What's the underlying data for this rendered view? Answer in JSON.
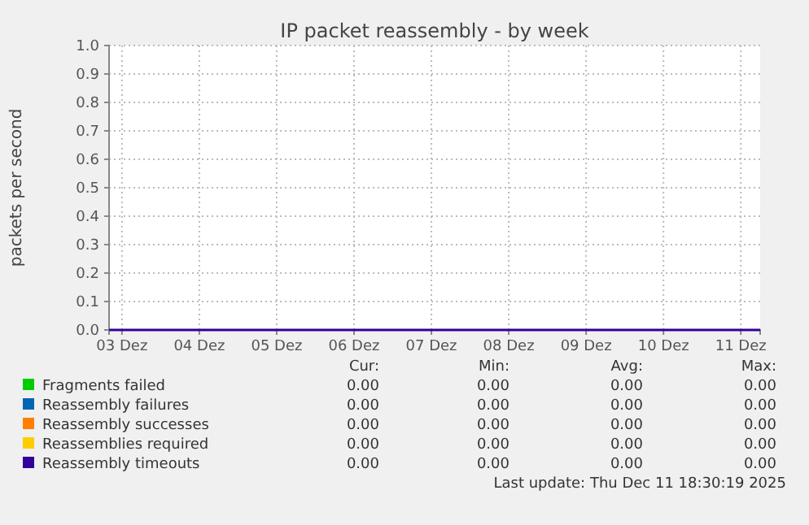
{
  "chart_data": {
    "type": "line",
    "title": "IP packet reassembly - by week",
    "ylabel": "packets per second",
    "x": [
      "2025-12-02T20:00",
      "2025-12-11T06:00"
    ],
    "xlim": [
      "2025-12-02T20:00",
      "2025-12-11T06:00"
    ],
    "xticks": [
      {
        "value": "2025-12-03",
        "label": "03 Dez"
      },
      {
        "value": "2025-12-04",
        "label": "04 Dez"
      },
      {
        "value": "2025-12-05",
        "label": "05 Dez"
      },
      {
        "value": "2025-12-06",
        "label": "06 Dez"
      },
      {
        "value": "2025-12-07",
        "label": "07 Dez"
      },
      {
        "value": "2025-12-08",
        "label": "08 Dez"
      },
      {
        "value": "2025-12-09",
        "label": "09 Dez"
      },
      {
        "value": "2025-12-10",
        "label": "10 Dez"
      },
      {
        "value": "2025-12-11",
        "label": "11 Dez"
      }
    ],
    "ylim": [
      0,
      1
    ],
    "yticks": [
      {
        "value": 0,
        "label": "0.0"
      },
      {
        "value": 0.1,
        "label": "0.1"
      },
      {
        "value": 0.2,
        "label": "0.2"
      },
      {
        "value": 0.3,
        "label": "0.3"
      },
      {
        "value": 0.4,
        "label": "0.4"
      },
      {
        "value": 0.5,
        "label": "0.5"
      },
      {
        "value": 0.6,
        "label": "0.6"
      },
      {
        "value": 0.7,
        "label": "0.7"
      },
      {
        "value": 0.8,
        "label": "0.8"
      },
      {
        "value": 0.9,
        "label": "0.9"
      },
      {
        "value": 1,
        "label": "1.0"
      }
    ],
    "grid": true,
    "legend": "bottom",
    "series": [
      {
        "name": "Fragments failed",
        "color": "#00cc00",
        "values": [
          null,
          null
        ]
      },
      {
        "name": "Reassembly failures",
        "color": "#0066b3",
        "values": [
          null,
          null
        ]
      },
      {
        "name": "Reassembly successes",
        "color": "#ff8000",
        "values": [
          null,
          null
        ]
      },
      {
        "name": "Reassemblies required",
        "color": "#ffcc00",
        "values": [
          null,
          null
        ]
      },
      {
        "name": "Reassembly timeouts",
        "color": "#330099",
        "values": [
          0,
          0
        ]
      }
    ],
    "annotations": [
      "Cur:",
      "Min:",
      "Avg:",
      "Max:",
      "0.00",
      "0.00",
      "0.00",
      "0.00",
      "0.00",
      "0.00",
      "0.00",
      "0.00",
      "0.00",
      "0.00",
      "0.00",
      "0.00",
      "0.00",
      "0.00",
      "0.00",
      "0.00",
      "0.00",
      "0.00",
      "0.00",
      "0.00",
      "Last update: Thu Dec 11 18:30:19 2025"
    ]
  }
}
